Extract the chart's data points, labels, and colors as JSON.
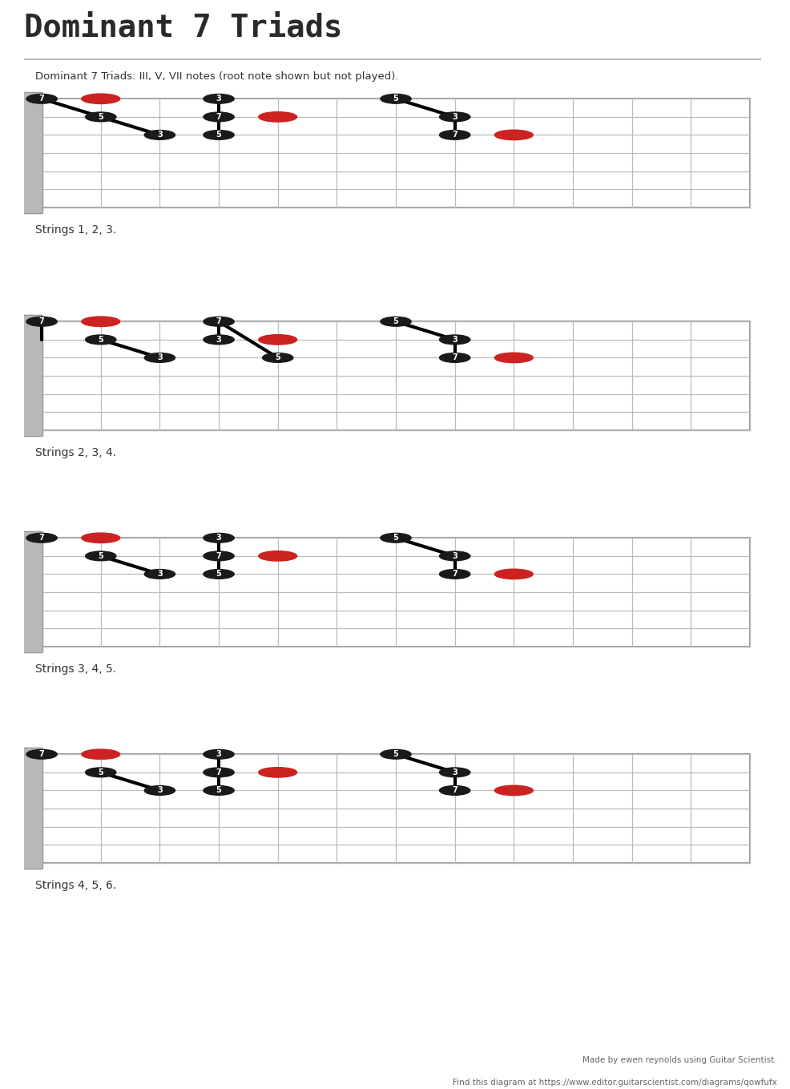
{
  "title": "Dominant 7 Triads",
  "subtitle": "Dominant 7 Triads: III, V, VII notes (root note shown but not played).",
  "footer_line1": "Made by ewen reynolds using Guitar Scientist.",
  "footer_line2": "Find this diagram at https://www.editor.guitarscientist.com/diagrams/qowfufx",
  "bg_color": "#ffffff",
  "dot_black": "#1a1a1a",
  "dot_red": "#cc2222",
  "num_frets": 12,
  "num_strings": 7,
  "rows": [
    {
      "label": "Strings 1, 2, 3.",
      "patterns": [
        {
          "notes": [
            {
              "fret": 0,
              "string": 0,
              "label": "7",
              "color": "black"
            },
            {
              "fret": 1,
              "string": 0,
              "label": "",
              "color": "red"
            },
            {
              "fret": 1,
              "string": 1,
              "label": "5",
              "color": "black"
            },
            {
              "fret": 2,
              "string": 2,
              "label": "3",
              "color": "black"
            }
          ],
          "lines": [
            [
              0,
              0,
              1,
              1
            ],
            [
              1,
              1,
              2,
              2
            ]
          ]
        },
        {
          "notes": [
            {
              "fret": 3,
              "string": 0,
              "label": "3",
              "color": "black"
            },
            {
              "fret": 3,
              "string": 1,
              "label": "7",
              "color": "black"
            },
            {
              "fret": 3,
              "string": 2,
              "label": "5",
              "color": "black"
            },
            {
              "fret": 4,
              "string": 1,
              "label": "",
              "color": "red"
            }
          ],
          "lines": [
            [
              3,
              0,
              3,
              1
            ],
            [
              3,
              1,
              3,
              2
            ]
          ]
        },
        {
          "notes": [
            {
              "fret": 6,
              "string": 0,
              "label": "5",
              "color": "black"
            },
            {
              "fret": 7,
              "string": 1,
              "label": "3",
              "color": "black"
            },
            {
              "fret": 7,
              "string": 2,
              "label": "7",
              "color": "black"
            },
            {
              "fret": 8,
              "string": 2,
              "label": "",
              "color": "red"
            }
          ],
          "lines": [
            [
              6,
              0,
              7,
              1
            ],
            [
              7,
              1,
              7,
              2
            ]
          ]
        }
      ]
    },
    {
      "label": "Strings 2, 3, 4.",
      "patterns": [
        {
          "notes": [
            {
              "fret": 0,
              "string": 0,
              "label": "7",
              "color": "black"
            },
            {
              "fret": 1,
              "string": 0,
              "label": "",
              "color": "red"
            },
            {
              "fret": 1,
              "string": 1,
              "label": "5",
              "color": "black"
            },
            {
              "fret": 2,
              "string": 2,
              "label": "3",
              "color": "black"
            }
          ],
          "lines": [
            [
              0,
              0,
              0,
              1
            ],
            [
              1,
              1,
              2,
              2
            ]
          ]
        },
        {
          "notes": [
            {
              "fret": 3,
              "string": 0,
              "label": "7",
              "color": "black"
            },
            {
              "fret": 3,
              "string": 1,
              "label": "3",
              "color": "black"
            },
            {
              "fret": 4,
              "string": 1,
              "label": "",
              "color": "red"
            },
            {
              "fret": 4,
              "string": 2,
              "label": "5",
              "color": "black"
            }
          ],
          "lines": [
            [
              3,
              0,
              3,
              1
            ],
            [
              3,
              0,
              4,
              2
            ]
          ]
        },
        {
          "notes": [
            {
              "fret": 6,
              "string": 0,
              "label": "5",
              "color": "black"
            },
            {
              "fret": 7,
              "string": 1,
              "label": "3",
              "color": "black"
            },
            {
              "fret": 7,
              "string": 2,
              "label": "7",
              "color": "black"
            },
            {
              "fret": 8,
              "string": 2,
              "label": "",
              "color": "red"
            }
          ],
          "lines": [
            [
              6,
              0,
              7,
              1
            ],
            [
              7,
              1,
              7,
              2
            ]
          ]
        }
      ]
    },
    {
      "label": "Strings 3, 4, 5.",
      "patterns": [
        {
          "notes": [
            {
              "fret": 0,
              "string": 0,
              "label": "7",
              "color": "black"
            },
            {
              "fret": 1,
              "string": 0,
              "label": "",
              "color": "red"
            },
            {
              "fret": 1,
              "string": 1,
              "label": "5",
              "color": "black"
            },
            {
              "fret": 2,
              "string": 2,
              "label": "3",
              "color": "black"
            }
          ],
          "lines": [
            [
              1,
              1,
              2,
              2
            ]
          ]
        },
        {
          "notes": [
            {
              "fret": 3,
              "string": 0,
              "label": "3",
              "color": "black"
            },
            {
              "fret": 3,
              "string": 1,
              "label": "7",
              "color": "black"
            },
            {
              "fret": 3,
              "string": 2,
              "label": "5",
              "color": "black"
            },
            {
              "fret": 4,
              "string": 1,
              "label": "",
              "color": "red"
            }
          ],
          "lines": [
            [
              3,
              0,
              3,
              1
            ],
            [
              3,
              1,
              3,
              2
            ]
          ]
        },
        {
          "notes": [
            {
              "fret": 6,
              "string": 0,
              "label": "5",
              "color": "black"
            },
            {
              "fret": 7,
              "string": 1,
              "label": "3",
              "color": "black"
            },
            {
              "fret": 7,
              "string": 2,
              "label": "7",
              "color": "black"
            },
            {
              "fret": 8,
              "string": 2,
              "label": "",
              "color": "red"
            }
          ],
          "lines": [
            [
              6,
              0,
              7,
              1
            ],
            [
              7,
              1,
              7,
              2
            ]
          ]
        }
      ]
    },
    {
      "label": "Strings 4, 5, 6.",
      "patterns": [
        {
          "notes": [
            {
              "fret": 0,
              "string": 0,
              "label": "7",
              "color": "black"
            },
            {
              "fret": 1,
              "string": 0,
              "label": "",
              "color": "red"
            },
            {
              "fret": 1,
              "string": 1,
              "label": "5",
              "color": "black"
            },
            {
              "fret": 2,
              "string": 2,
              "label": "3",
              "color": "black"
            }
          ],
          "lines": [
            [
              1,
              1,
              2,
              2
            ]
          ]
        },
        {
          "notes": [
            {
              "fret": 3,
              "string": 0,
              "label": "3",
              "color": "black"
            },
            {
              "fret": 3,
              "string": 1,
              "label": "7",
              "color": "black"
            },
            {
              "fret": 3,
              "string": 2,
              "label": "5",
              "color": "black"
            },
            {
              "fret": 4,
              "string": 1,
              "label": "",
              "color": "red"
            }
          ],
          "lines": [
            [
              3,
              0,
              3,
              1
            ],
            [
              3,
              1,
              3,
              2
            ]
          ]
        },
        {
          "notes": [
            {
              "fret": 6,
              "string": 0,
              "label": "5",
              "color": "black"
            },
            {
              "fret": 7,
              "string": 1,
              "label": "3",
              "color": "black"
            },
            {
              "fret": 7,
              "string": 2,
              "label": "7",
              "color": "black"
            },
            {
              "fret": 8,
              "string": 2,
              "label": "",
              "color": "red"
            }
          ],
          "lines": [
            [
              6,
              0,
              7,
              1
            ],
            [
              7,
              1,
              7,
              2
            ]
          ]
        }
      ]
    }
  ]
}
